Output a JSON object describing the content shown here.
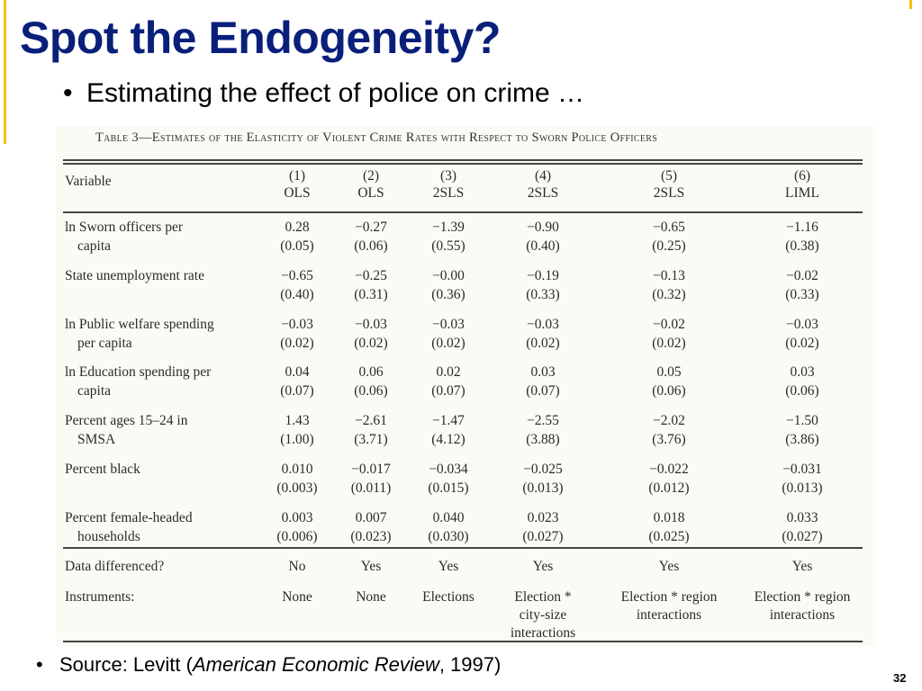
{
  "slide": {
    "title": "Spot the Endogeneity?",
    "bullet_main": "Estimating the effect of police on crime …",
    "source_prefix": "Source: Levitt (",
    "source_journal": "American Economic Review",
    "source_suffix": ", 1997)",
    "page_number": "32",
    "bullet_char": "•"
  },
  "table": {
    "caption": "Table 3—Estimates of the Elasticity of Violent Crime Rates with Respect to Sworn Police Officers",
    "variable_header": "Variable",
    "columns": [
      {
        "num": "(1)",
        "method": "OLS"
      },
      {
        "num": "(2)",
        "method": "OLS"
      },
      {
        "num": "(3)",
        "method": "2SLS"
      },
      {
        "num": "(4)",
        "method": "2SLS"
      },
      {
        "num": "(5)",
        "method": "2SLS"
      },
      {
        "num": "(6)",
        "method": "LIML"
      }
    ],
    "rows": [
      {
        "label": [
          "ln Sworn officers per",
          "capita"
        ],
        "coef": [
          "0.28",
          "−0.27",
          "−1.39",
          "−0.90",
          "−0.65",
          "−1.16"
        ],
        "se": [
          "(0.05)",
          "(0.06)",
          "(0.55)",
          "(0.40)",
          "(0.25)",
          "(0.38)"
        ]
      },
      {
        "label": [
          "State unemployment rate"
        ],
        "coef": [
          "−0.65",
          "−0.25",
          "−0.00",
          "−0.19",
          "−0.13",
          "−0.02"
        ],
        "se": [
          "(0.40)",
          "(0.31)",
          "(0.36)",
          "(0.33)",
          "(0.32)",
          "(0.33)"
        ]
      },
      {
        "label": [
          "ln Public welfare spending",
          "per capita"
        ],
        "coef": [
          "−0.03",
          "−0.03",
          "−0.03",
          "−0.03",
          "−0.02",
          "−0.03"
        ],
        "se": [
          "(0.02)",
          "(0.02)",
          "(0.02)",
          "(0.02)",
          "(0.02)",
          "(0.02)"
        ]
      },
      {
        "label": [
          "ln Education spending per",
          "capita"
        ],
        "coef": [
          "0.04",
          "0.06",
          "0.02",
          "0.03",
          "0.05",
          "0.03"
        ],
        "se": [
          "(0.07)",
          "(0.06)",
          "(0.07)",
          "(0.07)",
          "(0.06)",
          "(0.06)"
        ]
      },
      {
        "label": [
          "Percent ages 15–24 in",
          "SMSA"
        ],
        "coef": [
          "1.43",
          "−2.61",
          "−1.47",
          "−2.55",
          "−2.02",
          "−1.50"
        ],
        "se": [
          "(1.00)",
          "(3.71)",
          "(4.12)",
          "(3.88)",
          "(3.76)",
          "(3.86)"
        ]
      },
      {
        "label": [
          "Percent black"
        ],
        "coef": [
          "0.010",
          "−0.017",
          "−0.034",
          "−0.025",
          "−0.022",
          "−0.031"
        ],
        "se": [
          "(0.003)",
          "(0.011)",
          "(0.015)",
          "(0.013)",
          "(0.012)",
          "(0.013)"
        ]
      },
      {
        "label": [
          "Percent female-headed",
          "households"
        ],
        "coef": [
          "0.003",
          "0.007",
          "0.040",
          "0.023",
          "0.018",
          "0.033"
        ],
        "se": [
          "(0.006)",
          "(0.023)",
          "(0.030)",
          "(0.027)",
          "(0.025)",
          "(0.027)"
        ]
      }
    ],
    "data_differenced": {
      "label": "Data differenced?",
      "values": [
        "No",
        "Yes",
        "Yes",
        "Yes",
        "Yes",
        "Yes"
      ]
    },
    "instruments": {
      "label": "Instruments:",
      "values": [
        [
          "None"
        ],
        [
          "None"
        ],
        [
          "Elections"
        ],
        [
          "Election *",
          "city-size",
          "interactions"
        ],
        [
          "Election * region",
          "interactions"
        ],
        [
          "Election * region",
          "interactions"
        ]
      ]
    }
  }
}
